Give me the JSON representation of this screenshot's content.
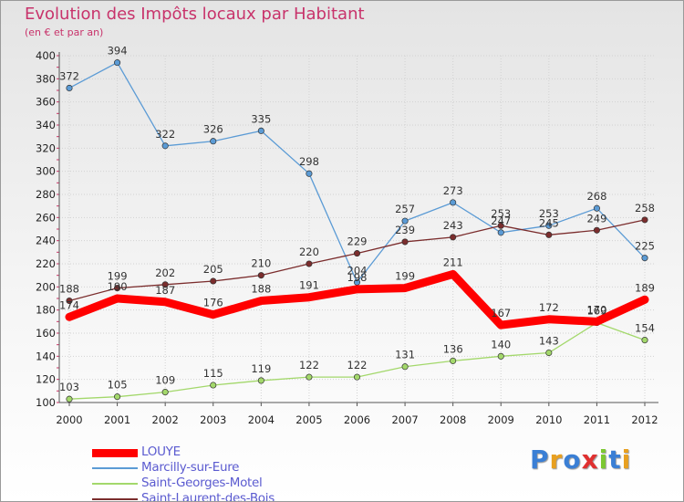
{
  "chart_data": {
    "type": "line",
    "title": "Evolution des Impôts locaux par Habitant",
    "subtitle": "(en € et par an)",
    "x": [
      "2000",
      "2001",
      "2002",
      "2003",
      "2004",
      "2005",
      "2006",
      "2007",
      "2008",
      "2009",
      "2010",
      "2011",
      "2012"
    ],
    "ylim": [
      100,
      400
    ],
    "yticks": [
      100,
      120,
      140,
      160,
      180,
      200,
      220,
      240,
      260,
      280,
      300,
      320,
      340,
      360,
      380,
      400
    ],
    "grid": true,
    "legend_position": "bottom-left",
    "series": [
      {
        "name": "LOUYE",
        "color": "#ff0000",
        "values": [
          174,
          190,
          187,
          176,
          188,
          191,
          198,
          199,
          211,
          167,
          172,
          170,
          189
        ],
        "labels": [
          "174",
          "190",
          "187",
          "176",
          "188",
          "191",
          "198",
          "199",
          "211",
          "167",
          "172",
          "170",
          "189"
        ]
      },
      {
        "name": "Marcilly-sur-Eure",
        "color": "#5b9bd5",
        "values": [
          372,
          394,
          322,
          326,
          335,
          298,
          204,
          257,
          273,
          247,
          253,
          268,
          225
        ],
        "labels": [
          "372",
          "394",
          "322",
          "326",
          "335",
          "298",
          "204",
          "257",
          "273",
          "247",
          "253",
          "268",
          "225"
        ]
      },
      {
        "name": "Saint-Georges-Motel",
        "color": "#a3d86b",
        "values": [
          103,
          105,
          109,
          115,
          119,
          122,
          122,
          131,
          136,
          140,
          143,
          169,
          154
        ],
        "labels": [
          "103",
          "105",
          "109",
          "115",
          "119",
          "122",
          "122",
          "131",
          "136",
          "140",
          "143",
          "169",
          "154"
        ]
      },
      {
        "name": "Saint-Laurent-des-Bois",
        "color": "#7b2d2d",
        "values": [
          188,
          199,
          202,
          205,
          210,
          220,
          229,
          239,
          243,
          253,
          245,
          249,
          258
        ],
        "labels": [
          "188",
          "199",
          "202",
          "205",
          "210",
          "220",
          "229",
          "239",
          "243",
          "253",
          "245",
          "249",
          "258"
        ]
      }
    ]
  },
  "logo": {
    "text": "Proxiti",
    "colors": [
      "#3a7fd5",
      "#e8a020",
      "#3a7fd5",
      "#e03030",
      "#7cc832",
      "#3a7fd5",
      "#e8a020"
    ]
  }
}
